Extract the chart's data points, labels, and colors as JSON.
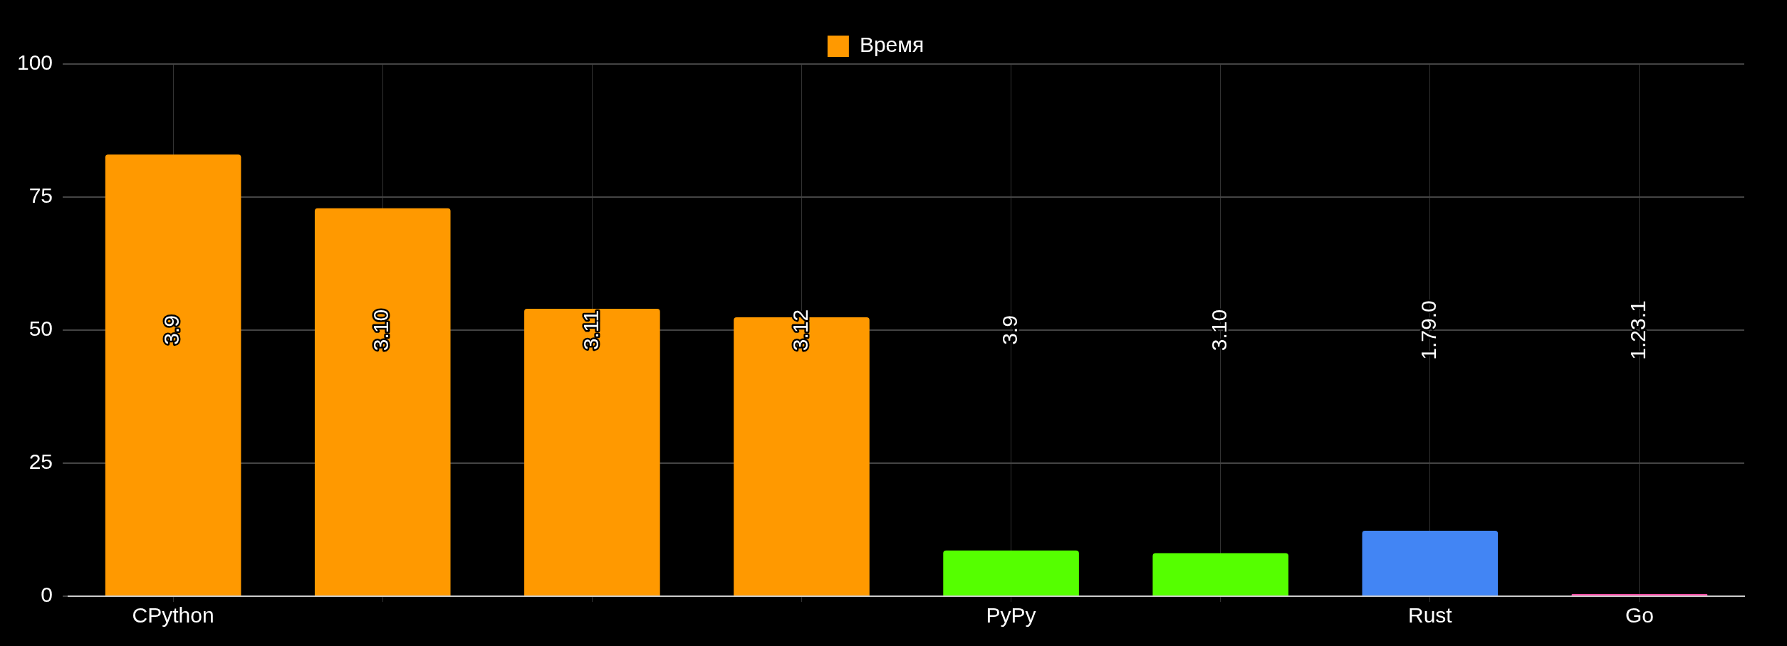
{
  "chart_data": {
    "type": "bar",
    "categories": [
      "CPython",
      null,
      null,
      null,
      "PyPy",
      null,
      "Rust",
      "Go"
    ],
    "series": [
      {
        "name": "Время",
        "color": "#ff9900",
        "colors": [
          "#ff9900",
          "#ff9900",
          "#ff9900",
          "#ff9900",
          "#55ff00",
          "#55ff00",
          "#4285f4",
          "#ff4da6"
        ],
        "values": [
          83.0,
          72.9,
          54.0,
          52.4,
          8.6,
          8.1,
          12.3,
          0.4
        ]
      }
    ],
    "annotations": [
      "3.9",
      "3.10",
      "3.11",
      "3.12",
      "3.9",
      "3.10",
      "1.79.0",
      "1.23.1"
    ],
    "ylim": [
      0,
      100
    ],
    "yticks": [
      0,
      25,
      50,
      75,
      100
    ],
    "grid": true,
    "legend": "top"
  }
}
